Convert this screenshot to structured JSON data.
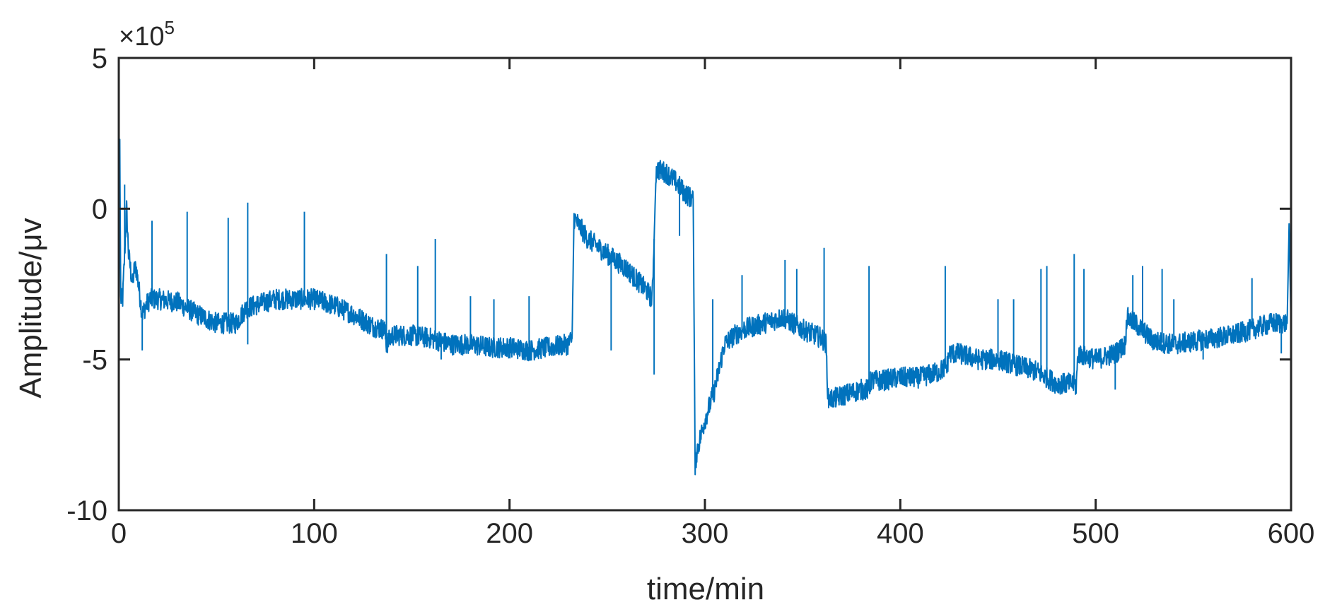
{
  "chart_data": {
    "type": "line",
    "title": "",
    "xlabel": "time/min",
    "ylabel": "Amplitude/μv",
    "y_exponent_label": "×10",
    "y_exponent_power": "5",
    "xlim": [
      0,
      600
    ],
    "ylim": [
      -10,
      5
    ],
    "x_ticks": [
      0,
      100,
      200,
      300,
      400,
      500,
      600
    ],
    "x_tick_labels": [
      "0",
      "100",
      "200",
      "300",
      "400",
      "500",
      "600"
    ],
    "y_ticks": [
      5,
      0,
      -5,
      -10
    ],
    "y_tick_labels": [
      "5",
      "0",
      "-5",
      "-10"
    ],
    "grid": false,
    "legend": "none",
    "color": "#0072BD",
    "series": [
      {
        "x": [
          0,
          0.5,
          1,
          2,
          3,
          4,
          5,
          6,
          7,
          8,
          9,
          10,
          11,
          12,
          14,
          16,
          20,
          30,
          40,
          50,
          60,
          65,
          70,
          80,
          90,
          100,
          110,
          120,
          130,
          136,
          137,
          140,
          150,
          160,
          170,
          180,
          190,
          200,
          210,
          220,
          230,
          232,
          233,
          235,
          240,
          250,
          260,
          270,
          273,
          274,
          275,
          276,
          280,
          285,
          290,
          294,
          295,
          296,
          298,
          300,
          305,
          310,
          315,
          320,
          330,
          340,
          350,
          360,
          362,
          363,
          366,
          370,
          380,
          384,
          385,
          390,
          400,
          410,
          420,
          424,
          425,
          430,
          440,
          450,
          460,
          470,
          480,
          489,
          490,
          491,
          500,
          510,
          515,
          516,
          520,
          525,
          528,
          530,
          540,
          550,
          560,
          570,
          580,
          590,
          598,
          599,
          600
        ],
        "y": [
          -2.5,
          2.3,
          -3.0,
          -3.0,
          -1.5,
          0.0,
          -1.5,
          -2.0,
          -2.5,
          -2.0,
          -2.0,
          -2.5,
          -3.0,
          -3.5,
          -3.2,
          -3.0,
          -3.0,
          -3.1,
          -3.5,
          -3.8,
          -3.8,
          -3.3,
          -3.2,
          -3.0,
          -3.0,
          -3.0,
          -3.2,
          -3.5,
          -3.9,
          -4.0,
          -4.5,
          -4.2,
          -4.2,
          -4.3,
          -4.5,
          -4.5,
          -4.6,
          -4.6,
          -4.7,
          -4.6,
          -4.5,
          -4.3,
          -0.3,
          -0.5,
          -1.0,
          -1.5,
          -2.0,
          -2.7,
          -3.0,
          -1.0,
          1.2,
          1.3,
          1.2,
          0.9,
          0.5,
          0.3,
          -8.5,
          -8.0,
          -7.5,
          -7.0,
          -6.0,
          -4.5,
          -4.2,
          -4.0,
          -3.8,
          -3.6,
          -4.0,
          -4.3,
          -4.5,
          -6.3,
          -6.3,
          -6.2,
          -6.0,
          -6.0,
          -5.7,
          -5.7,
          -5.6,
          -5.6,
          -5.4,
          -5.2,
          -4.8,
          -4.8,
          -5.0,
          -5.0,
          -5.2,
          -5.4,
          -5.8,
          -5.8,
          -5.9,
          -4.8,
          -5.0,
          -4.8,
          -4.5,
          -3.6,
          -3.8,
          -4.1,
          -4.3,
          -4.4,
          -4.5,
          -4.4,
          -4.3,
          -4.2,
          -4.0,
          -3.8,
          -3.8,
          -0.5,
          -4.0
        ]
      }
    ],
    "spikes": [
      {
        "x": 3,
        "y": 0.8
      },
      {
        "x": 12,
        "y": -4.7
      },
      {
        "x": 17,
        "y": -0.4
      },
      {
        "x": 35,
        "y": -0.1
      },
      {
        "x": 56,
        "y": -0.3
      },
      {
        "x": 66,
        "y": 0.2
      },
      {
        "x": 66,
        "y": -4.5
      },
      {
        "x": 95,
        "y": -0.1
      },
      {
        "x": 137,
        "y": -1.5
      },
      {
        "x": 153,
        "y": -1.9
      },
      {
        "x": 162,
        "y": -1.0
      },
      {
        "x": 165,
        "y": -5.0
      },
      {
        "x": 180,
        "y": -2.9
      },
      {
        "x": 192,
        "y": -3.0
      },
      {
        "x": 210,
        "y": -2.9
      },
      {
        "x": 252,
        "y": -4.7
      },
      {
        "x": 274,
        "y": -5.5
      },
      {
        "x": 287,
        "y": -0.9
      },
      {
        "x": 304,
        "y": -3.0
      },
      {
        "x": 319,
        "y": -2.2
      },
      {
        "x": 341,
        "y": -1.7
      },
      {
        "x": 347,
        "y": -2.0
      },
      {
        "x": 361,
        "y": -1.3
      },
      {
        "x": 384,
        "y": -1.9
      },
      {
        "x": 423,
        "y": -1.9
      },
      {
        "x": 450,
        "y": -3.0
      },
      {
        "x": 458,
        "y": -3.0
      },
      {
        "x": 472,
        "y": -2.0
      },
      {
        "x": 475,
        "y": -1.9
      },
      {
        "x": 489,
        "y": -1.5
      },
      {
        "x": 494,
        "y": -2.0
      },
      {
        "x": 510,
        "y": -6.0
      },
      {
        "x": 519,
        "y": -2.2
      },
      {
        "x": 524,
        "y": -1.9
      },
      {
        "x": 534,
        "y": -2.0
      },
      {
        "x": 540,
        "y": -3.0
      },
      {
        "x": 555,
        "y": -5.0
      },
      {
        "x": 580,
        "y": -2.3
      },
      {
        "x": 595,
        "y": -4.8
      }
    ]
  }
}
